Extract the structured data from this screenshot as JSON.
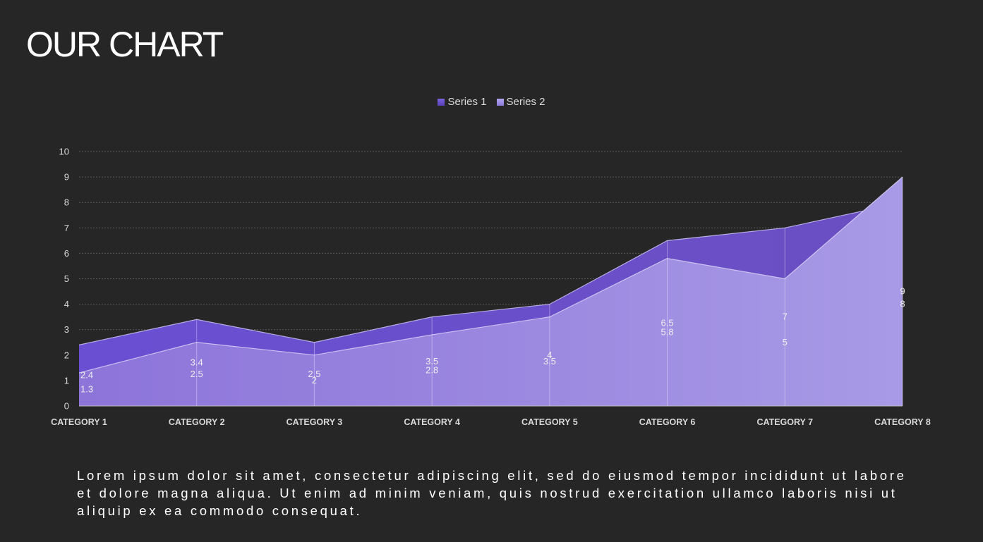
{
  "slide": {
    "title": "OUR CHART",
    "body_text": "Lorem ipsum dolor sit amet, consectetur adipiscing elit, sed do eiusmod tempor incididunt ut labore et dolore magna aliqua. Ut enim ad minim veniam, quis nostrud exercitation ullamco laboris nisi ut aliquip ex ea commodo consequat."
  },
  "colors": {
    "background": "#262626",
    "series1_left": "#6a4fd3",
    "series1_right": "#6a4fc2",
    "series2_left": "#8c74d9",
    "series2_right": "#a89ae6",
    "gridline": "#595959",
    "tick_label": "#d9d9d9",
    "category_label": "#d9d9d9"
  },
  "chart_data": {
    "type": "area",
    "categories": [
      "CATEGORY 1",
      "CATEGORY 2",
      "CATEGORY 3",
      "CATEGORY 4",
      "CATEGORY 5",
      "CATEGORY 6",
      "CATEGORY 7",
      "CATEGORY 8"
    ],
    "series": [
      {
        "name": "Series 1",
        "values": [
          2.4,
          3.4,
          2.5,
          3.5,
          4,
          6.5,
          7,
          8
        ]
      },
      {
        "name": "Series 2",
        "values": [
          1.3,
          2.5,
          2,
          2.8,
          3.5,
          5.8,
          5,
          9
        ]
      }
    ],
    "ylim": [
      0,
      10
    ],
    "yticks": [
      0,
      1,
      2,
      3,
      4,
      5,
      6,
      7,
      8,
      9,
      10
    ],
    "grid": true,
    "legend": "top-center",
    "data_labels": true
  }
}
